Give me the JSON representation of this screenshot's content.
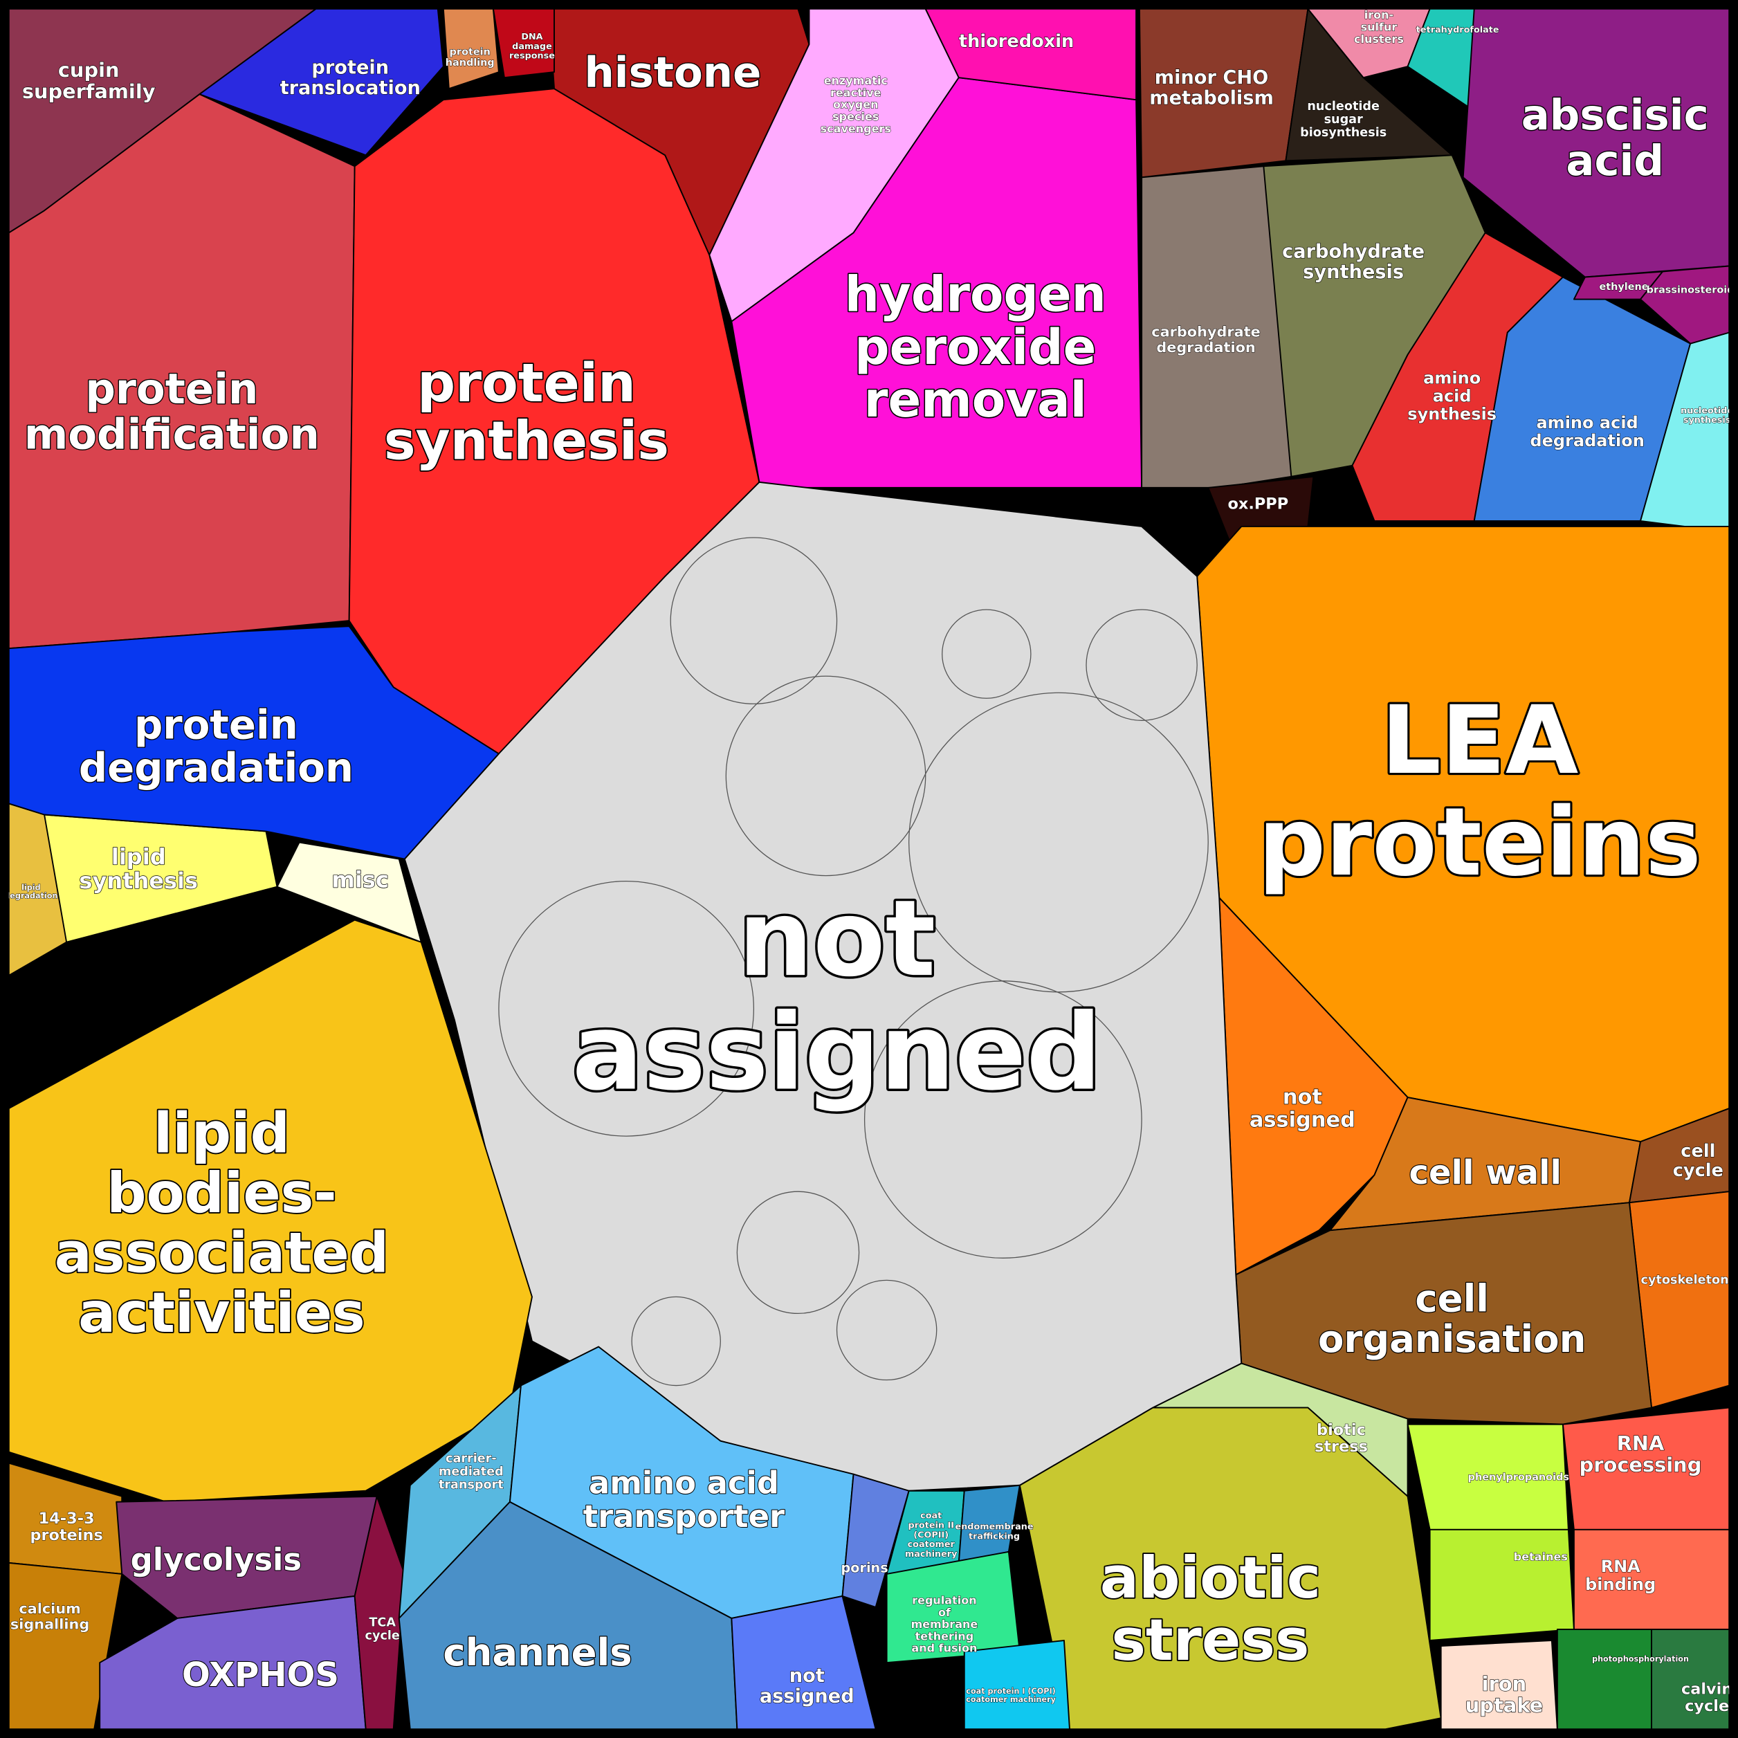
{
  "cells": [
    {
      "label": [
        "cupin",
        "superfamily"
      ]
    },
    {
      "label": [
        "protein",
        "translocation"
      ]
    },
    {
      "label": [
        "protein",
        "modification"
      ]
    },
    {
      "label": [
        "protein",
        "synthesis"
      ]
    },
    {
      "label": [
        "histone"
      ]
    },
    {
      "label": [
        "enzymatic",
        "reactive",
        "oxygen",
        "species",
        "scavengers"
      ]
    },
    {
      "label": [
        "hydrogen",
        "peroxide",
        "removal"
      ]
    },
    {
      "label": [
        "thioredoxin"
      ]
    },
    {
      "label": [
        "minor CHO",
        "metabolism"
      ]
    },
    {
      "label": [
        "nucleotide",
        "sugar",
        "biosynthesis"
      ]
    },
    {
      "label": [
        "iron-",
        "sulfur",
        "clusters"
      ]
    },
    {
      "label": [
        "tetrahydrofolate"
      ]
    },
    {
      "label": [
        "abscisic",
        "acid"
      ]
    },
    {
      "label": [
        "carbohydrate",
        "synthesis"
      ]
    },
    {
      "label": [
        "carbohydrate",
        "degradation"
      ]
    },
    {
      "label": [
        "ox.PPP"
      ]
    },
    {
      "label": [
        "amino",
        "acid",
        "synthesis"
      ]
    },
    {
      "label": [
        "amino acid",
        "degradation"
      ]
    },
    {
      "label": [
        "nucleotide",
        "synthesis"
      ]
    },
    {
      "label": [
        "ethylene"
      ]
    },
    {
      "label": [
        "brassinosteroid"
      ]
    },
    {
      "label": [
        "LEA",
        "proteins"
      ]
    },
    {
      "label": [
        "not",
        "assigned"
      ]
    },
    {
      "label": [
        "cell wall"
      ]
    },
    {
      "label": [
        "cell",
        "cycle"
      ]
    },
    {
      "label": [
        "cytoskeleton"
      ]
    },
    {
      "label": [
        "cell",
        "organisation"
      ]
    },
    {
      "label": [
        "biotic",
        "stress"
      ]
    },
    {
      "label": [
        "abiotic",
        "stress"
      ]
    },
    {
      "label": [
        "RNA",
        "processing"
      ]
    },
    {
      "label": [
        "RNA",
        "binding"
      ]
    },
    {
      "label": [
        "phenylpropanoids"
      ]
    },
    {
      "label": [
        "betaines"
      ]
    },
    {
      "label": [
        "iron",
        "uptake"
      ]
    },
    {
      "label": [
        "photophosphorylation"
      ]
    },
    {
      "label": [
        "calvin",
        "cycle"
      ]
    },
    {
      "label": [
        "not",
        "assigned"
      ]
    },
    {
      "label": [
        "lipid",
        "synthesis"
      ]
    },
    {
      "label": [
        "misc"
      ]
    },
    {
      "label": [
        "lipid",
        "degradation"
      ]
    },
    {
      "label": [
        "lipid",
        "bodies-",
        "associated",
        "activities"
      ]
    },
    {
      "label": [
        "protein",
        "degradation"
      ]
    },
    {
      "label": [
        "14-3-3",
        "proteins"
      ]
    },
    {
      "label": [
        "calcium",
        "signalling"
      ]
    },
    {
      "label": [
        "glycolysis"
      ]
    },
    {
      "label": [
        "OXPHOS"
      ]
    },
    {
      "label": [
        "TCA",
        "cycle"
      ]
    },
    {
      "label": [
        "carrier-",
        "mediated",
        "transport"
      ]
    },
    {
      "label": [
        "amino acid",
        "transporter"
      ]
    },
    {
      "label": [
        "channels"
      ]
    },
    {
      "label": [
        "porins"
      ]
    },
    {
      "label": [
        "not",
        "assigned"
      ]
    },
    {
      "label": [
        "coat",
        "protein II",
        "(COPII)",
        "coatomer",
        "machinery"
      ]
    },
    {
      "label": [
        "endomembrane",
        "trafficking"
      ]
    },
    {
      "label": [
        "regulation",
        "of",
        "membrane",
        "tethering",
        "and fusion"
      ]
    },
    {
      "label": [
        "coat protein I (COPI)",
        "coatomer machinery"
      ]
    },
    {
      "label": [
        "protein",
        "handling"
      ]
    },
    {
      "label": [
        "DNA",
        "damage",
        "response"
      ]
    }
  ]
}
